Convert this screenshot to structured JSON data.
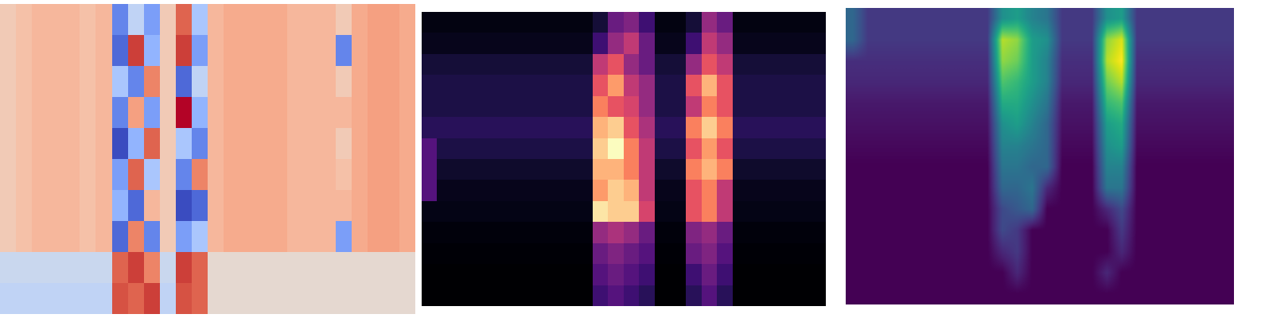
{
  "chart_data": [
    {
      "type": "heatmap",
      "tick_labels": false,
      "cells": [
        [
          0.1,
          0.15,
          0.2,
          0.2,
          0.2,
          0.15,
          0.2,
          -0.6,
          -0.2,
          -0.5,
          0.1,
          0.5,
          -0.3,
          0.2,
          0.25,
          0.25,
          0.25,
          0.25,
          0.2,
          0.2,
          0.2,
          0.1,
          0.25,
          0.3,
          0.3,
          0.25
        ],
        [
          0.1,
          0.15,
          0.2,
          0.2,
          0.2,
          0.15,
          0.2,
          -0.7,
          0.6,
          -0.4,
          0.1,
          0.6,
          -0.5,
          0.2,
          0.25,
          0.25,
          0.25,
          0.25,
          0.2,
          0.2,
          0.2,
          -0.6,
          0.25,
          0.3,
          0.3,
          0.25
        ],
        [
          0.1,
          0.15,
          0.2,
          0.2,
          0.2,
          0.15,
          0.2,
          -0.3,
          -0.6,
          0.4,
          0.1,
          -0.7,
          -0.2,
          0.2,
          0.25,
          0.25,
          0.25,
          0.25,
          0.2,
          0.2,
          0.2,
          0.1,
          0.25,
          0.3,
          0.3,
          0.25
        ],
        [
          0.1,
          0.15,
          0.2,
          0.2,
          0.2,
          0.15,
          0.2,
          -0.6,
          0.3,
          -0.5,
          0.1,
          0.7,
          -0.4,
          0.2,
          0.25,
          0.25,
          0.25,
          0.25,
          0.2,
          0.2,
          0.2,
          0.2,
          0.25,
          0.3,
          0.3,
          0.25
        ],
        [
          0.1,
          0.15,
          0.2,
          0.2,
          0.2,
          0.15,
          0.2,
          -0.8,
          -0.4,
          0.5,
          0.1,
          -0.3,
          -0.6,
          0.2,
          0.25,
          0.25,
          0.25,
          0.25,
          0.2,
          0.2,
          0.2,
          0.1,
          0.25,
          0.3,
          0.3,
          0.25
        ],
        [
          0.1,
          0.15,
          0.2,
          0.2,
          0.2,
          0.15,
          0.2,
          -0.5,
          0.5,
          -0.3,
          0.1,
          -0.6,
          0.4,
          0.2,
          0.25,
          0.25,
          0.25,
          0.25,
          0.2,
          0.2,
          0.2,
          0.15,
          0.25,
          0.3,
          0.3,
          0.25
        ],
        [
          0.1,
          0.15,
          0.2,
          0.2,
          0.2,
          0.15,
          0.2,
          -0.4,
          -0.7,
          0.2,
          0.1,
          -0.8,
          -0.7,
          0.2,
          0.25,
          0.25,
          0.25,
          0.25,
          0.2,
          0.2,
          0.2,
          0.2,
          0.25,
          0.3,
          0.3,
          0.25
        ],
        [
          0.1,
          0.15,
          0.2,
          0.2,
          0.2,
          0.15,
          0.2,
          -0.7,
          0.4,
          -0.6,
          0.1,
          -0.5,
          -0.3,
          0.2,
          0.25,
          0.25,
          0.25,
          0.25,
          0.2,
          0.2,
          0.2,
          -0.5,
          0.25,
          0.3,
          0.3,
          0.25
        ],
        [
          -0.15,
          -0.15,
          -0.15,
          -0.15,
          -0.15,
          -0.15,
          -0.15,
          0.5,
          0.6,
          0.4,
          -0.15,
          0.6,
          0.5,
          0.0,
          0.0,
          0.0,
          0.0,
          0.0,
          0.0,
          0.0,
          0.0,
          0.0,
          0.0,
          0.0,
          0.0,
          0.0
        ],
        [
          -0.2,
          -0.2,
          -0.2,
          -0.2,
          -0.2,
          -0.2,
          -0.2,
          0.55,
          0.5,
          0.6,
          -0.2,
          0.55,
          0.5,
          0.0,
          0.0,
          0.0,
          0.0,
          0.0,
          0.0,
          0.0,
          0.0,
          0.0,
          0.0,
          0.0,
          0.0,
          0.0
        ]
      ]
    },
    {
      "type": "heatmap",
      "tick_labels": false,
      "cells": [
        [
          0.03,
          0.03,
          0.03,
          0.03,
          0.03,
          0.03,
          0.03,
          0.03,
          0.03,
          0.03,
          0.03,
          0.1,
          0.3,
          0.35,
          0.2,
          0.03,
          0.03,
          0.1,
          0.4,
          0.3,
          0.03,
          0.03,
          0.03,
          0.03,
          0.03,
          0.03
        ],
        [
          0.05,
          0.05,
          0.05,
          0.05,
          0.05,
          0.05,
          0.05,
          0.05,
          0.05,
          0.05,
          0.05,
          0.2,
          0.4,
          0.5,
          0.3,
          0.05,
          0.05,
          0.2,
          0.5,
          0.4,
          0.05,
          0.05,
          0.05,
          0.05,
          0.05,
          0.05
        ],
        [
          0.1,
          0.1,
          0.1,
          0.1,
          0.1,
          0.1,
          0.1,
          0.1,
          0.1,
          0.1,
          0.1,
          0.5,
          0.6,
          0.4,
          0.3,
          0.1,
          0.1,
          0.4,
          0.6,
          0.5,
          0.1,
          0.1,
          0.1,
          0.1,
          0.1,
          0.1
        ],
        [
          0.12,
          0.12,
          0.12,
          0.12,
          0.12,
          0.12,
          0.12,
          0.12,
          0.12,
          0.12,
          0.12,
          0.6,
          0.75,
          0.5,
          0.4,
          0.12,
          0.12,
          0.6,
          0.8,
          0.6,
          0.12,
          0.12,
          0.12,
          0.12,
          0.12,
          0.12
        ],
        [
          0.12,
          0.12,
          0.12,
          0.12,
          0.12,
          0.12,
          0.12,
          0.12,
          0.12,
          0.12,
          0.12,
          0.7,
          0.6,
          0.55,
          0.4,
          0.12,
          0.12,
          0.5,
          0.7,
          0.6,
          0.12,
          0.12,
          0.12,
          0.12,
          0.12,
          0.12
        ],
        [
          0.15,
          0.15,
          0.15,
          0.15,
          0.15,
          0.15,
          0.15,
          0.15,
          0.15,
          0.15,
          0.15,
          0.8,
          0.85,
          0.6,
          0.45,
          0.15,
          0.15,
          0.7,
          0.85,
          0.7,
          0.15,
          0.15,
          0.15,
          0.15,
          0.15,
          0.15
        ],
        [
          0.25,
          0.12,
          0.12,
          0.12,
          0.12,
          0.12,
          0.12,
          0.12,
          0.12,
          0.12,
          0.12,
          0.85,
          0.95,
          0.7,
          0.5,
          0.12,
          0.12,
          0.6,
          0.75,
          0.6,
          0.12,
          0.12,
          0.12,
          0.12,
          0.12,
          0.12
        ],
        [
          0.25,
          0.08,
          0.08,
          0.08,
          0.08,
          0.08,
          0.08,
          0.08,
          0.08,
          0.08,
          0.08,
          0.8,
          0.8,
          0.7,
          0.5,
          0.08,
          0.08,
          0.7,
          0.8,
          0.7,
          0.08,
          0.08,
          0.08,
          0.08,
          0.08,
          0.08
        ],
        [
          0.25,
          0.05,
          0.05,
          0.05,
          0.05,
          0.05,
          0.05,
          0.05,
          0.05,
          0.05,
          0.05,
          0.75,
          0.85,
          0.8,
          0.5,
          0.05,
          0.05,
          0.6,
          0.7,
          0.5,
          0.05,
          0.05,
          0.05,
          0.05,
          0.05,
          0.05
        ],
        [
          0.04,
          0.04,
          0.04,
          0.04,
          0.04,
          0.04,
          0.04,
          0.04,
          0.04,
          0.04,
          0.04,
          0.9,
          0.85,
          0.85,
          0.55,
          0.04,
          0.04,
          0.6,
          0.7,
          0.5,
          0.04,
          0.04,
          0.04,
          0.04,
          0.04,
          0.04
        ],
        [
          0.02,
          0.02,
          0.02,
          0.02,
          0.02,
          0.02,
          0.02,
          0.02,
          0.02,
          0.02,
          0.02,
          0.4,
          0.45,
          0.4,
          0.3,
          0.02,
          0.02,
          0.35,
          0.4,
          0.3,
          0.02,
          0.02,
          0.02,
          0.02,
          0.02,
          0.02
        ],
        [
          0.01,
          0.01,
          0.01,
          0.01,
          0.01,
          0.01,
          0.01,
          0.01,
          0.01,
          0.01,
          0.01,
          0.3,
          0.35,
          0.3,
          0.25,
          0.01,
          0.01,
          0.3,
          0.35,
          0.25,
          0.01,
          0.01,
          0.01,
          0.01,
          0.01,
          0.01
        ],
        [
          0,
          0,
          0,
          0,
          0,
          0,
          0,
          0,
          0,
          0,
          0,
          0.25,
          0.3,
          0.25,
          0.2,
          0,
          0,
          0.2,
          0.3,
          0.2,
          0,
          0,
          0,
          0,
          0,
          0
        ],
        [
          0,
          0,
          0,
          0,
          0,
          0,
          0,
          0,
          0,
          0,
          0,
          0.2,
          0.25,
          0.2,
          0.15,
          0,
          0,
          0.15,
          0.25,
          0.15,
          0,
          0,
          0,
          0,
          0,
          0
        ]
      ]
    },
    {
      "type": "heatmap",
      "tick_labels": false,
      "cells": [
        [
          0.3,
          0.15,
          0.15,
          0.15,
          0.15,
          0.15,
          0.15,
          0.15,
          0.15,
          0.15,
          0.45,
          0.5,
          0.4,
          0.35,
          0.15,
          0.15,
          0.15,
          0.45,
          0.5,
          0.15,
          0.15,
          0.15,
          0.15,
          0.15,
          0.15,
          0.15
        ],
        [
          0.3,
          0.15,
          0.15,
          0.15,
          0.15,
          0.15,
          0.15,
          0.15,
          0.15,
          0.15,
          0.8,
          0.75,
          0.5,
          0.45,
          0.15,
          0.15,
          0.15,
          0.75,
          0.85,
          0.15,
          0.15,
          0.15,
          0.15,
          0.15,
          0.15,
          0.15
        ],
        [
          0.12,
          0.12,
          0.12,
          0.12,
          0.12,
          0.12,
          0.12,
          0.12,
          0.12,
          0.12,
          0.75,
          0.7,
          0.5,
          0.4,
          0.12,
          0.12,
          0.12,
          0.8,
          0.9,
          0.12,
          0.12,
          0.12,
          0.12,
          0.12,
          0.12,
          0.12
        ],
        [
          0.1,
          0.1,
          0.1,
          0.1,
          0.1,
          0.1,
          0.1,
          0.1,
          0.1,
          0.1,
          0.65,
          0.6,
          0.5,
          0.4,
          0.1,
          0.1,
          0.1,
          0.7,
          0.8,
          0.1,
          0.1,
          0.1,
          0.1,
          0.1,
          0.1,
          0.1
        ],
        [
          0.06,
          0.06,
          0.06,
          0.06,
          0.06,
          0.06,
          0.06,
          0.06,
          0.06,
          0.06,
          0.55,
          0.55,
          0.45,
          0.35,
          0.06,
          0.06,
          0.06,
          0.6,
          0.65,
          0.06,
          0.06,
          0.06,
          0.06,
          0.06,
          0.06,
          0.06
        ],
        [
          0.04,
          0.04,
          0.04,
          0.04,
          0.04,
          0.04,
          0.04,
          0.04,
          0.04,
          0.04,
          0.45,
          0.5,
          0.4,
          0.3,
          0.04,
          0.04,
          0.04,
          0.5,
          0.55,
          0.04,
          0.04,
          0.04,
          0.04,
          0.04,
          0.04,
          0.04
        ],
        [
          0.02,
          0.02,
          0.02,
          0.02,
          0.02,
          0.02,
          0.02,
          0.02,
          0.02,
          0.02,
          0.4,
          0.4,
          0.35,
          0.3,
          0.02,
          0.02,
          0.02,
          0.45,
          0.5,
          0.02,
          0.02,
          0.02,
          0.02,
          0.02,
          0.02,
          0.02
        ],
        [
          0,
          0,
          0,
          0,
          0,
          0,
          0,
          0,
          0,
          0,
          0.35,
          0.35,
          0.3,
          0.3,
          0,
          0,
          0,
          0.4,
          0.4,
          0,
          0,
          0,
          0,
          0,
          0,
          0
        ],
        [
          0,
          0,
          0,
          0,
          0,
          0,
          0,
          0,
          0,
          0,
          0.3,
          0.3,
          0.35,
          0.1,
          0,
          0,
          0,
          0.35,
          0.35,
          0,
          0,
          0,
          0,
          0,
          0,
          0
        ],
        [
          0,
          0,
          0,
          0,
          0,
          0,
          0,
          0,
          0,
          0,
          0.2,
          0.25,
          0.3,
          0,
          0,
          0,
          0,
          0.1,
          0.2,
          0,
          0,
          0,
          0,
          0,
          0,
          0
        ],
        [
          0,
          0,
          0,
          0,
          0,
          0,
          0,
          0,
          0,
          0,
          0.2,
          0.15,
          0,
          0,
          0,
          0,
          0,
          0,
          0.15,
          0,
          0,
          0,
          0,
          0,
          0,
          0
        ],
        [
          0,
          0,
          0,
          0,
          0,
          0,
          0,
          0,
          0,
          0,
          0.1,
          0.15,
          0,
          0,
          0,
          0,
          0,
          0,
          0.1,
          0,
          0,
          0,
          0,
          0,
          0,
          0
        ],
        [
          0,
          0,
          0,
          0,
          0,
          0,
          0,
          0,
          0,
          0,
          0,
          0.1,
          0,
          0,
          0,
          0,
          0,
          0.1,
          0,
          0,
          0,
          0,
          0,
          0,
          0,
          0
        ],
        [
          0,
          0,
          0,
          0,
          0,
          0,
          0,
          0,
          0,
          0,
          0,
          0,
          0,
          0,
          0,
          0,
          0,
          0,
          0,
          0,
          0,
          0,
          0,
          0,
          0,
          0
        ]
      ]
    }
  ]
}
